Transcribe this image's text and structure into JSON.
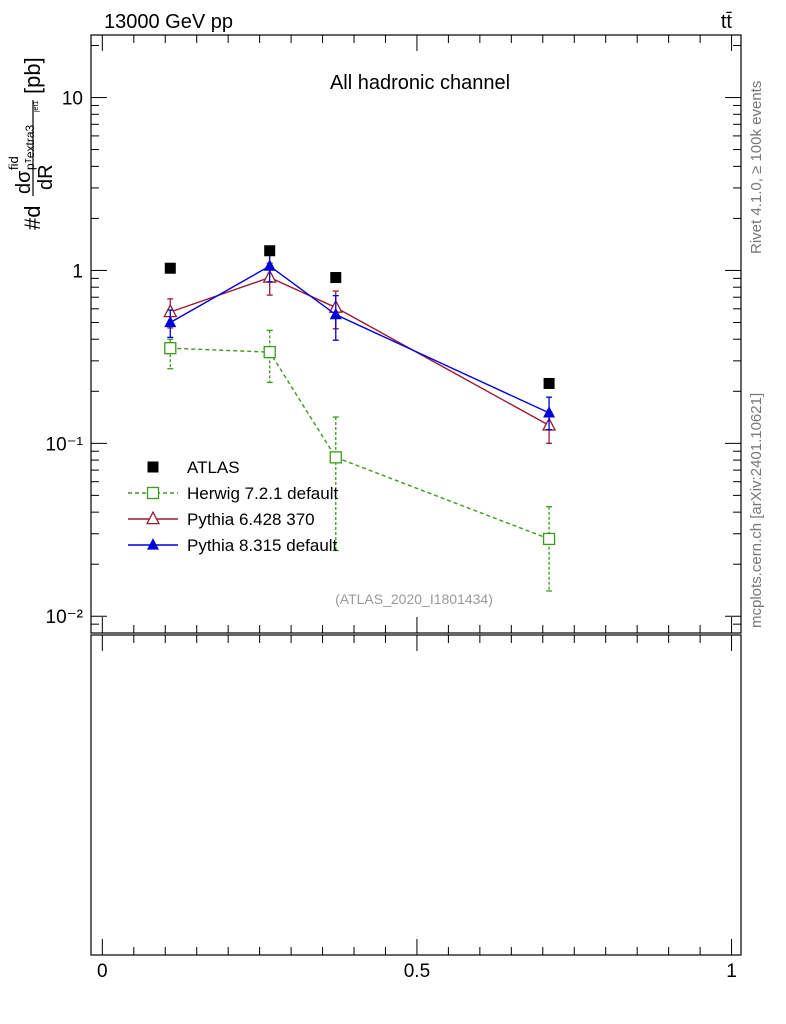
{
  "header": {
    "energy_label": "13000 GeV pp",
    "process_label": "tt̄"
  },
  "side_labels": {
    "rivet": "Rivet 4.1.0, ≥ 100k events",
    "mcplots": "mcplots.cern.ch [arXiv:2401.10621]"
  },
  "chart_data": {
    "type": "scatter",
    "title": "All hadronic channel",
    "analysis_id": "(ATLAS_2020_I1801434)",
    "yscale": "log",
    "ylim": [
      0.008,
      23
    ],
    "xlim": [
      -0.018,
      1.015
    ],
    "y_ticks": [
      {
        "value": 10,
        "label": "10"
      },
      {
        "value": 1,
        "label": "1"
      },
      {
        "value": 0.1,
        "label": "10⁻¹"
      },
      {
        "value": 0.01,
        "label": "10⁻²"
      }
    ],
    "x_ticks": [
      {
        "value": 0,
        "label": "0"
      },
      {
        "value": 0.5,
        "label": "0.5"
      },
      {
        "value": 1,
        "label": "1"
      }
    ],
    "ylabel": {
      "prefix": "#d",
      "numerator": "dσ",
      "superscript": "fid",
      "subscript": "pᵀextra3",
      "subsubscript": "jet1",
      "denominator": "dR",
      "unit": "[pb]"
    },
    "xlabel": "",
    "x": [
      0.108,
      0.266,
      0.371,
      0.71
    ],
    "series": [
      {
        "name": "ATLAS",
        "color": "#000000",
        "marker": "filled-square",
        "line": "none",
        "values": [
          1.03,
          1.3,
          0.91,
          0.222
        ],
        "err_low": [
          0,
          0,
          0,
          0
        ],
        "err_high": [
          0,
          0,
          0,
          0
        ]
      },
      {
        "name": "Herwig 7.2.1 default",
        "color": "#3a9a1b",
        "marker": "open-square",
        "line": "dashed",
        "values": [
          0.355,
          0.337,
          0.083,
          0.028
        ],
        "err_low": [
          0.085,
          0.112,
          0.059,
          0.014
        ],
        "err_high": [
          0.045,
          0.113,
          0.059,
          0.015
        ]
      },
      {
        "name": "Pythia 6.428 370",
        "color": "#9b1b30",
        "marker": "open-triangle",
        "line": "solid",
        "values": [
          0.575,
          0.91,
          0.61,
          0.127
        ],
        "err_low": [
          0.11,
          0.19,
          0.15,
          0.027
        ],
        "err_high": [
          0.11,
          0.19,
          0.15,
          0.025
        ]
      },
      {
        "name": "Pythia 8.315 default",
        "color": "#0000dd",
        "marker": "filled-triangle",
        "line": "solid",
        "values": [
          0.5,
          1.06,
          0.555,
          0.15
        ],
        "err_low": [
          0.09,
          0.2,
          0.16,
          0.03
        ],
        "err_high": [
          0.09,
          0.2,
          0.16,
          0.035
        ]
      }
    ],
    "legend_position": "bottom-left",
    "ratio_panel": "empty"
  }
}
